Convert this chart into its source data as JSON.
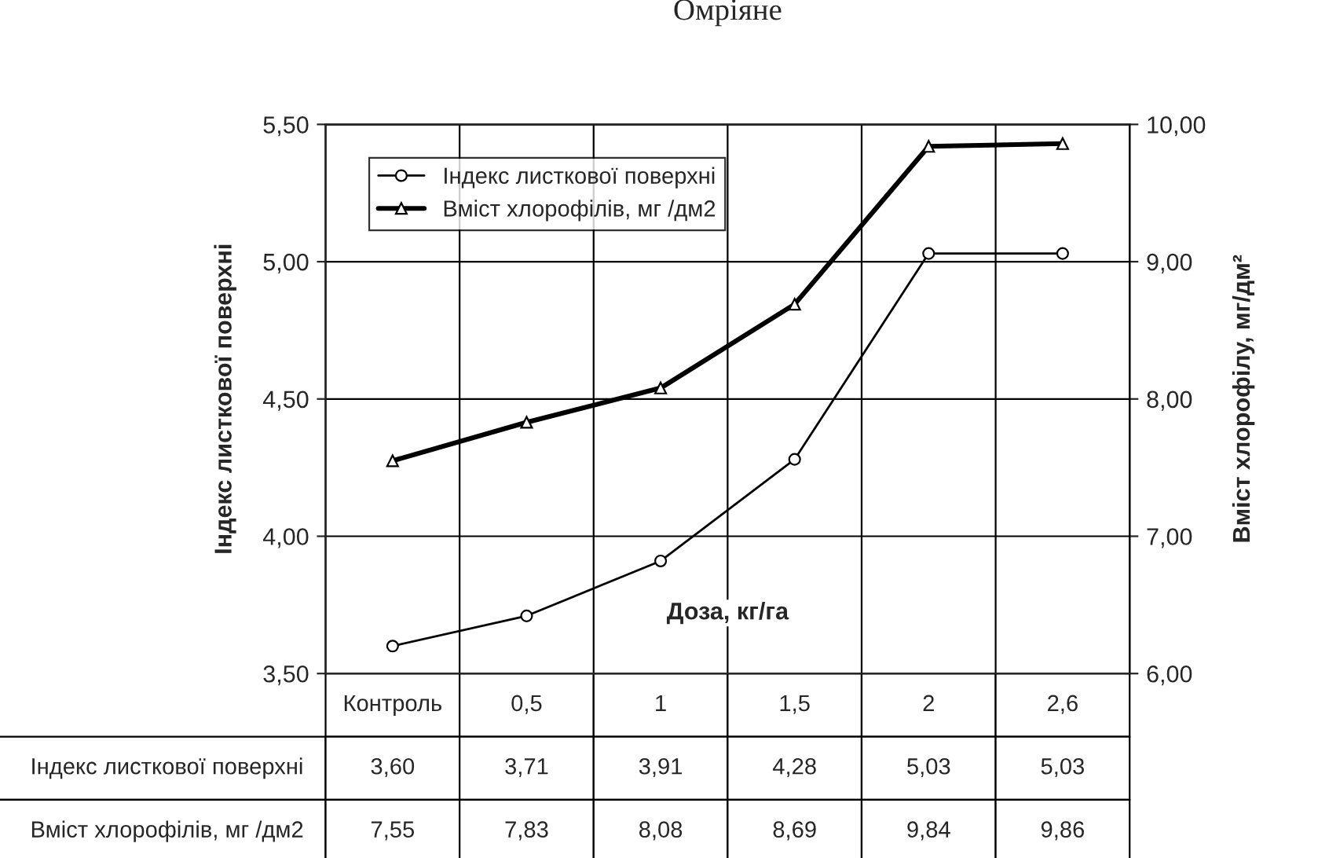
{
  "chart_data": {
    "type": "line",
    "title": "Омріяне",
    "xlabel": "Доза, кг/га",
    "ylabel": "Індекс листкової поверхні",
    "y2label": "Вміст хлорофілу, мг/дм²",
    "categories": [
      "Контроль",
      "0,5",
      "1",
      "1,5",
      "2",
      "2,6"
    ],
    "series": [
      {
        "name": "Індекс листкової поверхні",
        "color": "#000000",
        "marker": "circle",
        "values": [
          3.6,
          3.71,
          3.91,
          4.28,
          5.03,
          5.03
        ],
        "value_labels": [
          "3,60",
          "3,71",
          "3,91",
          "4,28",
          "5,03",
          "5,03"
        ]
      },
      {
        "name": "Вміст хлорофілів, мг /дм2",
        "color": "#000000",
        "marker": "triangle",
        "axis": "y2",
        "values": [
          7.55,
          7.83,
          8.08,
          8.69,
          9.84,
          9.86
        ],
        "value_labels": [
          "7,55",
          "7,83",
          "8,08",
          "8,69",
          "9,84",
          "9,86"
        ]
      }
    ],
    "ylim": [
      3.5,
      5.5
    ],
    "yticks": [
      {
        "value": 3.5,
        "label": "3,50"
      },
      {
        "value": 4.0,
        "label": "4,00"
      },
      {
        "value": 4.5,
        "label": "4,50"
      },
      {
        "value": 5.0,
        "label": "5,00"
      },
      {
        "value": 5.5,
        "label": "5,50"
      }
    ],
    "y2lim": [
      6,
      10
    ],
    "y2ticks": [
      {
        "value": 6,
        "label": "6,00"
      },
      {
        "value": 7,
        "label": "7,00"
      },
      {
        "value": 8,
        "label": "8,00"
      },
      {
        "value": 9,
        "label": "9,00"
      },
      {
        "value": 10,
        "label": "10,00"
      }
    ],
    "grid": true,
    "legend": "top left",
    "line_style": "solid"
  }
}
